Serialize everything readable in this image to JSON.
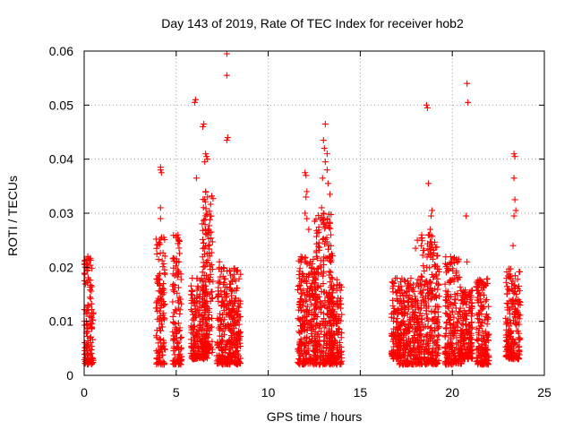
{
  "chart_data": {
    "type": "scatter",
    "title": "Day 143 of 2019, Rate Of TEC Index for receiver hob2",
    "xlabel": "GPS time / hours",
    "ylabel": "ROTI / TECUs",
    "xlim": [
      0,
      25
    ],
    "ylim": [
      0,
      0.06
    ],
    "xticks": [
      0,
      5,
      10,
      15,
      20,
      25
    ],
    "xtick_labels": [
      "0",
      "5",
      "10",
      "15",
      "20",
      "25"
    ],
    "yticks": [
      0,
      0.01,
      0.02,
      0.03,
      0.04,
      0.05,
      0.06
    ],
    "ytick_labels": [
      "0",
      "0.01",
      "0.02",
      "0.03",
      "0.04",
      "0.05",
      "0.06"
    ],
    "grid": true,
    "marker": "plus",
    "color": "#ff0000",
    "series": [
      {
        "name": "hob2",
        "clusters": [
          {
            "x": [
              0.0,
              0.5
            ],
            "y": [
              0.002,
              0.022
            ]
          },
          {
            "x": [
              3.9,
              4.4
            ],
            "y": [
              0.002,
              0.026
            ]
          },
          {
            "x": [
              4.8,
              5.3
            ],
            "y": [
              0.002,
              0.026
            ]
          },
          {
            "x": [
              5.8,
              6.7
            ],
            "y": [
              0.003,
              0.018
            ]
          },
          {
            "x": [
              6.4,
              7.0
            ],
            "y": [
              0.004,
              0.034
            ]
          },
          {
            "x": [
              7.2,
              8.5
            ],
            "y": [
              0.002,
              0.02
            ]
          },
          {
            "x": [
              11.6,
              12.7
            ],
            "y": [
              0.002,
              0.022
            ]
          },
          {
            "x": [
              12.5,
              13.5
            ],
            "y": [
              0.002,
              0.03
            ]
          },
          {
            "x": [
              13.3,
              14.0
            ],
            "y": [
              0.002,
              0.018
            ]
          },
          {
            "x": [
              16.7,
              17.1
            ],
            "y": [
              0.003,
              0.018
            ]
          },
          {
            "x": [
              17.1,
              18.3
            ],
            "y": [
              0.002,
              0.018
            ]
          },
          {
            "x": [
              18.3,
              19.3
            ],
            "y": [
              0.002,
              0.026
            ]
          },
          {
            "x": [
              19.6,
              20.5
            ],
            "y": [
              0.002,
              0.022
            ]
          },
          {
            "x": [
              20.5,
              21.1
            ],
            "y": [
              0.003,
              0.016
            ]
          },
          {
            "x": [
              21.3,
              22.0
            ],
            "y": [
              0.002,
              0.018
            ]
          },
          {
            "x": [
              22.9,
              23.7
            ],
            "y": [
              0.003,
              0.02
            ]
          }
        ],
        "points": [
          [
            0.2,
            0.022
          ],
          [
            0.25,
            0.0215
          ],
          [
            4.15,
            0.0385
          ],
          [
            4.15,
            0.038
          ],
          [
            4.2,
            0.0375
          ],
          [
            4.15,
            0.031
          ],
          [
            4.15,
            0.029
          ],
          [
            5.0,
            0.0255
          ],
          [
            5.1,
            0.026
          ],
          [
            6.0,
            0.0505
          ],
          [
            6.05,
            0.051
          ],
          [
            6.1,
            0.0365
          ],
          [
            6.45,
            0.046
          ],
          [
            6.5,
            0.0465
          ],
          [
            6.6,
            0.041
          ],
          [
            6.65,
            0.0405
          ],
          [
            6.55,
            0.0395
          ],
          [
            6.7,
            0.04
          ],
          [
            6.6,
            0.034
          ],
          [
            6.7,
            0.033
          ],
          [
            6.65,
            0.03
          ],
          [
            6.6,
            0.027
          ],
          [
            6.7,
            0.026
          ],
          [
            7.75,
            0.0595
          ],
          [
            7.75,
            0.0555
          ],
          [
            7.8,
            0.044
          ],
          [
            7.75,
            0.0435
          ],
          [
            7.35,
            0.021
          ],
          [
            12.0,
            0.0375
          ],
          [
            12.05,
            0.037
          ],
          [
            12.1,
            0.034
          ],
          [
            12.05,
            0.033
          ],
          [
            12.0,
            0.03
          ],
          [
            12.1,
            0.029
          ],
          [
            12.2,
            0.027
          ],
          [
            13.1,
            0.0465
          ],
          [
            13.0,
            0.0435
          ],
          [
            13.05,
            0.042
          ],
          [
            13.2,
            0.041
          ],
          [
            13.1,
            0.0395
          ],
          [
            13.2,
            0.038
          ],
          [
            12.95,
            0.0365
          ],
          [
            13.25,
            0.0355
          ],
          [
            13.35,
            0.0335
          ],
          [
            12.9,
            0.031
          ],
          [
            13.0,
            0.03
          ],
          [
            13.2,
            0.029
          ],
          [
            13.1,
            0.0275
          ],
          [
            13.4,
            0.026
          ],
          [
            13.3,
            0.024
          ],
          [
            13.45,
            0.0225
          ],
          [
            18.6,
            0.05
          ],
          [
            18.65,
            0.0495
          ],
          [
            18.7,
            0.0355
          ],
          [
            18.9,
            0.0305
          ],
          [
            18.85,
            0.0295
          ],
          [
            18.8,
            0.027
          ],
          [
            18.75,
            0.026
          ],
          [
            18.1,
            0.025
          ],
          [
            18.0,
            0.0235
          ],
          [
            20.8,
            0.054
          ],
          [
            20.85,
            0.0505
          ],
          [
            20.75,
            0.0295
          ],
          [
            20.8,
            0.021
          ],
          [
            23.35,
            0.041
          ],
          [
            23.4,
            0.0405
          ],
          [
            23.35,
            0.0365
          ],
          [
            23.4,
            0.0325
          ],
          [
            23.45,
            0.0305
          ],
          [
            23.35,
            0.0295
          ],
          [
            23.3,
            0.024
          ]
        ]
      }
    ]
  }
}
